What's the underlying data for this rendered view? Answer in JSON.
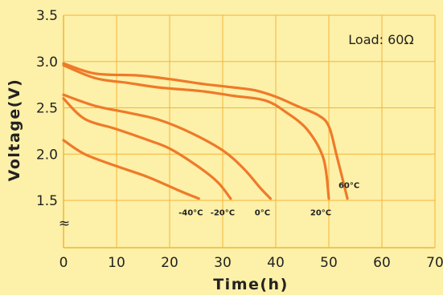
{
  "chart_data": {
    "type": "line",
    "xlabel": "Time(h)",
    "ylabel": "Voltage(V)",
    "xlim": [
      0,
      70
    ],
    "ylim": [
      1.5,
      3.5
    ],
    "x_ticks": [
      "0",
      "10",
      "20",
      "30",
      "40",
      "50",
      "60",
      "70"
    ],
    "y_ticks": [
      "1.5",
      "2.0",
      "2.5",
      "3.0",
      "3.5"
    ],
    "axis_break_symbol": "≈",
    "annotation": "Load: 60Ω",
    "grid": true,
    "colors": {
      "background": "#fdf0a8",
      "grid": "#f2b53a",
      "line": "#ee7a2a",
      "text": "#222222"
    },
    "series": [
      {
        "name": "-40°C",
        "points": [
          [
            0,
            2.15
          ],
          [
            4,
            2.0
          ],
          [
            10,
            1.87
          ],
          [
            16,
            1.75
          ],
          [
            22,
            1.6
          ],
          [
            25.5,
            1.52
          ]
        ]
      },
      {
        "name": "-20°C",
        "points": [
          [
            0,
            2.6
          ],
          [
            4,
            2.38
          ],
          [
            10,
            2.27
          ],
          [
            16,
            2.15
          ],
          [
            20,
            2.06
          ],
          [
            25,
            1.88
          ],
          [
            29,
            1.7
          ],
          [
            31.5,
            1.52
          ]
        ]
      },
      {
        "name": "0°C",
        "points": [
          [
            0,
            2.64
          ],
          [
            6,
            2.52
          ],
          [
            12,
            2.45
          ],
          [
            18,
            2.37
          ],
          [
            24,
            2.23
          ],
          [
            30,
            2.04
          ],
          [
            34,
            1.84
          ],
          [
            37,
            1.64
          ],
          [
            39,
            1.52
          ]
        ]
      },
      {
        "name": "20°C",
        "points": [
          [
            0,
            2.96
          ],
          [
            6,
            2.82
          ],
          [
            12,
            2.77
          ],
          [
            18,
            2.72
          ],
          [
            26,
            2.68
          ],
          [
            32,
            2.63
          ],
          [
            38,
            2.58
          ],
          [
            42,
            2.45
          ],
          [
            46,
            2.26
          ],
          [
            49,
            1.95
          ],
          [
            50,
            1.52
          ]
        ]
      },
      {
        "name": "60°C",
        "points": [
          [
            0,
            2.98
          ],
          [
            6,
            2.87
          ],
          [
            14,
            2.85
          ],
          [
            20,
            2.81
          ],
          [
            26,
            2.76
          ],
          [
            32,
            2.72
          ],
          [
            36,
            2.69
          ],
          [
            40,
            2.62
          ],
          [
            44,
            2.52
          ],
          [
            48,
            2.42
          ],
          [
            50,
            2.3
          ],
          [
            51.5,
            1.98
          ],
          [
            53.5,
            1.52
          ]
        ]
      }
    ]
  }
}
